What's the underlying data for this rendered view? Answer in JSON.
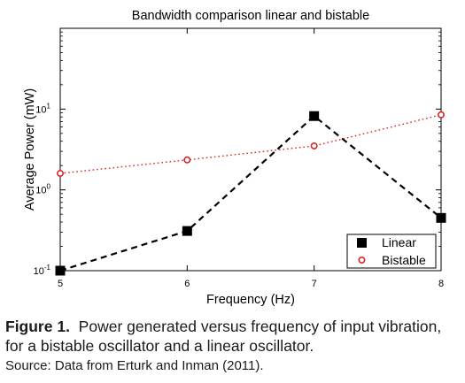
{
  "chart_data": {
    "type": "line",
    "title": "Bandwidth comparison linear and bistable",
    "xlabel": "Frequency (Hz)",
    "ylabel": "Average Power (mW)",
    "x": [
      5,
      6,
      7,
      8
    ],
    "xlim": [
      5,
      8
    ],
    "ylim": [
      0.1,
      100
    ],
    "yscale": "log",
    "x_ticks": [
      "5",
      "6",
      "7",
      "8"
    ],
    "y_ticks": [
      {
        "base": "10",
        "exp": "-1"
      },
      {
        "base": "10",
        "exp": "0"
      },
      {
        "base": "10",
        "exp": "1"
      }
    ],
    "series": [
      {
        "name": "Linear",
        "values": [
          0.1,
          0.31,
          8.2,
          0.45
        ],
        "color": "#000000",
        "line": "dashed",
        "marker": "filled-square"
      },
      {
        "name": "Bistable",
        "values": [
          1.6,
          2.35,
          3.5,
          8.5
        ],
        "color": "#d62728",
        "line": "dotted",
        "marker": "open-circle"
      }
    ],
    "legend_position": "bottom-right",
    "grid": false
  },
  "caption": {
    "label": "Figure 1.",
    "text": "Power generated versus frequency of input vibration,",
    "text2": "for a bistable oscillator and a linear oscillator.",
    "source": "Source: Data from Erturk and Inman (2011)."
  }
}
